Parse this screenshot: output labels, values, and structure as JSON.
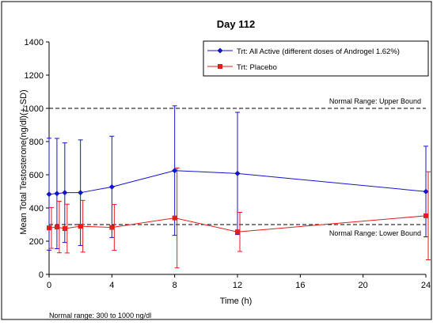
{
  "chart_data": {
    "type": "line",
    "title": "Day 112",
    "xlabel": "Time (h)",
    "ylabel": "Mean Total Testosterone(ng/dl)(+-SD)",
    "xlim": [
      0,
      24
    ],
    "ylim": [
      0,
      1400
    ],
    "x_ticks": [
      0,
      4,
      8,
      12,
      16,
      20,
      24
    ],
    "y_ticks": [
      0,
      200,
      400,
      600,
      800,
      1000,
      1200,
      1400
    ],
    "grid": false,
    "legend_position": "top-right",
    "series": [
      {
        "name": "Trt: All Active (different doses of Androgel 1.62%)",
        "color": "#1414c8",
        "marker": "diamond",
        "x": [
          0,
          0.5,
          1,
          2,
          4,
          8,
          12,
          24
        ],
        "y": [
          483,
          487,
          492,
          492,
          527,
          625,
          608,
          499
        ],
        "error": [
          337,
          332,
          300,
          318,
          305,
          390,
          368,
          273
        ]
      },
      {
        "name": "Trt: Placebo",
        "color": "#e01e1e",
        "marker": "square",
        "x": [
          0,
          0.5,
          1,
          2,
          4,
          8,
          12,
          24
        ],
        "y": [
          280,
          285,
          276,
          290,
          283,
          340,
          256,
          353
        ],
        "error": [
          123,
          155,
          147,
          156,
          138,
          301,
          118,
          265
        ]
      }
    ],
    "reference_lines": [
      {
        "label": "Normal Range: Upper Bound",
        "y": 1000
      },
      {
        "label": "Normal Range: Lower Bound",
        "y": 300
      }
    ]
  },
  "footnote": "Normal range: 300 to 1000 ng/dl"
}
